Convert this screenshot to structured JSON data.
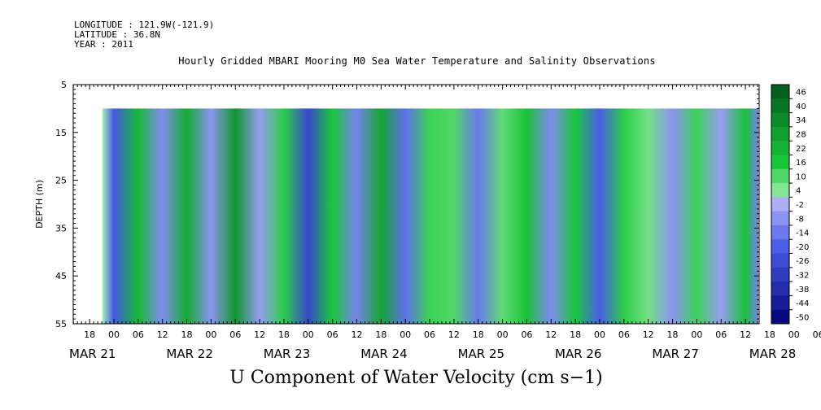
{
  "header": {
    "longitude": "LONGITUDE : 121.9W(-121.9)",
    "latitude": "LATITUDE : 36.8N",
    "year": "YEAR : 2011"
  },
  "chart_data": {
    "type": "heatmap",
    "title": "Hourly Gridded MBARI Mooring M0 Sea Water Temperature and Salinity Observations",
    "xlabel": "U Component of Water Velocity (cm s−1)",
    "ylabel": "DEPTH (m)",
    "y_ticks": [
      "5",
      "15",
      "25",
      "35",
      "45",
      "55"
    ],
    "ylim": [
      5,
      55
    ],
    "y_data_range": [
      10,
      55
    ],
    "x_hour_ticks": [
      "18",
      "00",
      "06",
      "12",
      "18",
      "00",
      "06",
      "12",
      "18",
      "00",
      "06",
      "12",
      "18",
      "00",
      "06",
      "12",
      "18",
      "00",
      "06",
      "12",
      "18",
      "00",
      "06",
      "12",
      "18",
      "00",
      "06",
      "12",
      "18",
      "00",
      "06",
      "12"
    ],
    "x_date_labels": [
      "MAR 21",
      "MAR 22",
      "MAR 23",
      "MAR 24",
      "MAR 25",
      "MAR 26",
      "MAR 27",
      "MAR 28"
    ],
    "colorbar_levels": [
      "46",
      "40",
      "34",
      "28",
      "22",
      "16",
      "10",
      "4",
      "-2",
      "-8",
      "-14",
      "-20",
      "-26",
      "-32",
      "-38",
      "-44",
      "-50"
    ],
    "colorbar_range": [
      -50,
      50
    ],
    "colors": {
      "positive_max": "#00521a",
      "positive_mid": "#19c83a",
      "positive_light": "#a8f0b2",
      "negative_light": "#b8b8f8",
      "negative_mid": "#4a5ee8",
      "negative_max": "#0a0a80"
    },
    "columns": [
      {
        "day_offset": -0.25,
        "value": 0
      },
      {
        "day_offset": 0.0,
        "value": -22
      },
      {
        "day_offset": 0.25,
        "value": 20
      },
      {
        "day_offset": 0.5,
        "value": -10
      },
      {
        "day_offset": 0.75,
        "value": 24
      },
      {
        "day_offset": 1.0,
        "value": -8
      },
      {
        "day_offset": 1.25,
        "value": 30
      },
      {
        "day_offset": 1.5,
        "value": -6
      },
      {
        "day_offset": 1.75,
        "value": 14
      },
      {
        "day_offset": 2.0,
        "value": -28
      },
      {
        "day_offset": 2.25,
        "value": 16
      },
      {
        "day_offset": 2.5,
        "value": -12
      },
      {
        "day_offset": 2.75,
        "value": 26
      },
      {
        "day_offset": 3.0,
        "value": -16
      },
      {
        "day_offset": 3.25,
        "value": 12
      },
      {
        "day_offset": 3.5,
        "value": 10
      },
      {
        "day_offset": 3.75,
        "value": -14
      },
      {
        "day_offset": 4.0,
        "value": 8
      },
      {
        "day_offset": 4.25,
        "value": 18
      },
      {
        "day_offset": 4.5,
        "value": -10
      },
      {
        "day_offset": 4.75,
        "value": 16
      },
      {
        "day_offset": 5.0,
        "value": -20
      },
      {
        "day_offset": 5.25,
        "value": 14
      },
      {
        "day_offset": 5.5,
        "value": 6
      },
      {
        "day_offset": 5.75,
        "value": -8
      },
      {
        "day_offset": 6.0,
        "value": 12
      },
      {
        "day_offset": 6.25,
        "value": -6
      },
      {
        "day_offset": 6.5,
        "value": 18
      },
      {
        "day_offset": 6.75,
        "value": -12
      },
      {
        "day_offset": 7.0,
        "value": 14
      },
      {
        "day_offset": 7.25,
        "value": 8
      }
    ]
  }
}
